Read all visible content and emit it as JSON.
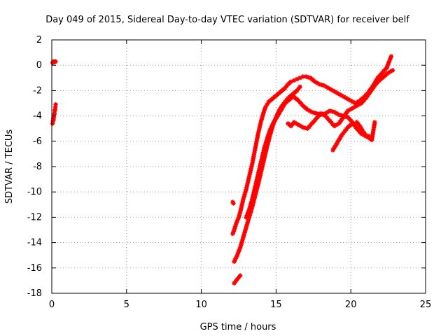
{
  "chart_data": {
    "type": "scatter",
    "title": "Day 049 of 2015, Sidereal Day-to-day VTEC variation (SDTVAR) for receiver belf",
    "xlabel": "GPS time / hours",
    "ylabel": "SDTVAR / TECUs",
    "xlim": [
      0,
      25
    ],
    "ylim": [
      -18,
      2
    ],
    "xticks": [
      "0",
      "5",
      "10",
      "15",
      "20",
      "25"
    ],
    "yticks": [
      "2",
      "0",
      "-2",
      "-4",
      "-6",
      "-8",
      "-10",
      "-12",
      "-14",
      "-16",
      "-18"
    ],
    "grid": true,
    "marker": "star/plus",
    "color": "#ff0000",
    "series": [
      {
        "x": [
          0.05,
          0.12,
          0.2,
          0.25
        ],
        "y": [
          0.2,
          0.3,
          0.25,
          0.3
        ],
        "early_x": [
          0.05,
          0.08,
          0.1,
          0.12,
          0.14,
          0.16,
          0.18,
          0.2,
          0.22,
          0.24,
          0.26
        ],
        "early_y": [
          -4.6,
          -4.4,
          -4.2,
          -4.3,
          -4.1,
          -3.9,
          -3.8,
          -3.6,
          -3.5,
          -3.3,
          -3.1
        ]
      },
      {
        "x": [
          12.1,
          12.2,
          12.3,
          12.4,
          12.5,
          12.6,
          12.7,
          12.8,
          12.9,
          13.0,
          13.1,
          13.2,
          13.3,
          13.4,
          13.5,
          13.6,
          13.7,
          13.8,
          13.9,
          14.0,
          14.1,
          14.2,
          14.3,
          14.4,
          14.5,
          14.6,
          14.7,
          14.8,
          14.9,
          15.0,
          15.2,
          15.4,
          15.6,
          15.8,
          16.0,
          16.2,
          16.4,
          16.6,
          16.8,
          17.0,
          17.3,
          17.6,
          17.9,
          18.2,
          18.5,
          18.8,
          19.1,
          19.4,
          19.7,
          20.0,
          20.3,
          20.6,
          20.9,
          21.2,
          21.5,
          21.8,
          22.1,
          22.4,
          22.7
        ],
        "y": [
          -13.3,
          -13.0,
          -12.6,
          -12.3,
          -12.0,
          -11.6,
          -11.1,
          -10.6,
          -10.2,
          -9.8,
          -9.3,
          -8.8,
          -8.3,
          -7.8,
          -7.2,
          -6.6,
          -6.0,
          -5.4,
          -4.9,
          -4.4,
          -4.0,
          -3.6,
          -3.3,
          -3.1,
          -2.9,
          -2.8,
          -2.7,
          -2.6,
          -2.5,
          -2.4,
          -2.2,
          -2.0,
          -1.8,
          -1.5,
          -1.3,
          -1.2,
          -1.1,
          -1.0,
          -0.9,
          -0.9,
          -1.0,
          -1.3,
          -1.5,
          -1.6,
          -1.8,
          -2.0,
          -2.2,
          -2.4,
          -2.6,
          -2.8,
          -3.0,
          -2.8,
          -2.5,
          -2.1,
          -1.6,
          -1.0,
          -0.6,
          -0.2,
          0.7
        ]
      },
      {
        "x": [
          12.2,
          12.4,
          12.6,
          12.8,
          13.0,
          13.2,
          13.4,
          13.6,
          13.8,
          14.0,
          14.2,
          14.4,
          14.6,
          14.8,
          15.0,
          15.2,
          15.4,
          15.6,
          15.8,
          16.0,
          16.2,
          16.4,
          16.6
        ],
        "y": [
          -15.5,
          -15.0,
          -14.4,
          -13.6,
          -12.8,
          -12.0,
          -11.2,
          -10.3,
          -9.4,
          -8.4,
          -7.4,
          -6.4,
          -5.5,
          -4.7,
          -4.1,
          -3.6,
          -3.2,
          -2.9,
          -2.6,
          -2.4,
          -2.2,
          -2.0,
          -1.7
        ]
      },
      {
        "x": [
          13.0,
          13.2,
          13.4,
          13.6,
          13.8,
          14.0,
          14.2,
          14.4,
          14.6,
          14.8,
          15.0,
          15.2,
          15.4,
          15.6,
          15.8,
          16.0,
          16.2,
          16.5,
          16.8,
          17.1,
          17.4,
          17.7,
          18.0,
          18.3,
          18.6,
          18.9,
          19.2,
          19.5,
          19.8,
          20.1,
          20.4,
          20.7,
          21.0,
          21.3
        ],
        "y": [
          -12.0,
          -11.4,
          -10.6,
          -9.6,
          -8.6,
          -7.6,
          -6.6,
          -5.8,
          -5.1,
          -4.6,
          -4.2,
          -3.8,
          -3.4,
          -3.0,
          -2.8,
          -2.6,
          -2.5,
          -2.8,
          -3.2,
          -3.5,
          -3.7,
          -3.8,
          -3.9,
          -3.8,
          -3.6,
          -3.7,
          -3.9,
          -4.0,
          -4.1,
          -4.5,
          -5.0,
          -5.4,
          -5.6,
          -5.8
        ]
      },
      {
        "x": [
          15.8,
          16.0,
          16.2,
          16.5,
          16.8,
          17.1,
          17.4,
          17.7,
          18.0,
          18.3,
          18.6,
          18.9,
          19.2,
          19.5,
          19.8,
          20.1,
          20.4,
          20.7,
          21.0,
          21.3,
          21.6,
          21.9,
          22.2,
          22.5,
          22.8
        ],
        "y": [
          -4.6,
          -4.8,
          -4.5,
          -4.7,
          -4.9,
          -5.0,
          -4.6,
          -4.2,
          -3.8,
          -4.0,
          -4.4,
          -4.8,
          -4.6,
          -4.1,
          -3.6,
          -3.4,
          -3.2,
          -3.0,
          -2.6,
          -2.1,
          -1.6,
          -1.2,
          -0.9,
          -0.6,
          -0.4
        ]
      },
      {
        "x": [
          18.8,
          19.0,
          19.2,
          19.4,
          19.6,
          19.8,
          20.0,
          20.2,
          20.4,
          20.6,
          20.8,
          21.0,
          21.2,
          21.4,
          21.6
        ],
        "y": [
          -6.7,
          -6.3,
          -5.9,
          -5.5,
          -5.2,
          -4.9,
          -4.7,
          -4.6,
          -4.5,
          -4.8,
          -5.2,
          -5.5,
          -5.6,
          -5.9,
          -4.5
        ]
      },
      {
        "x": [
          12.2,
          12.4,
          12.6
        ],
        "y": [
          -17.2,
          -16.9,
          -16.6
        ]
      },
      {
        "x": [
          12.1,
          12.15
        ],
        "y": [
          -10.8,
          -10.9
        ]
      }
    ]
  }
}
